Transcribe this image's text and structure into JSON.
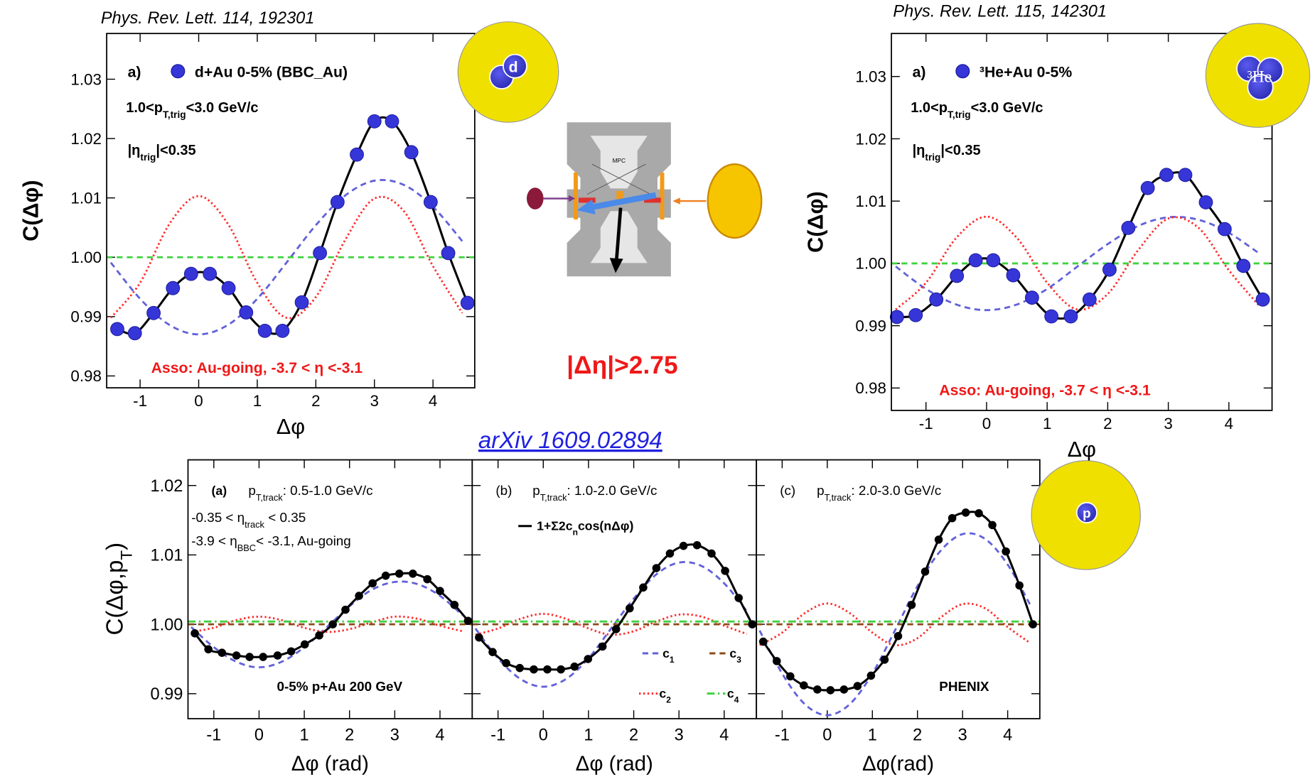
{
  "slide": {
    "delta_eta": "|Δη|>2.75",
    "reference": "arXiv 1609.02894",
    "detector_label": "MPC",
    "nuclei": [
      "d",
      "³He",
      "p"
    ]
  },
  "chart_data": [
    {
      "type": "line",
      "citation": "Phys. Rev. Lett. 114, 192301",
      "xlabel": "Δφ",
      "ylabel": "C(Δφ)",
      "xlim": [
        -1.5708,
        4.7124
      ],
      "ylim": [
        0.978,
        1.0377
      ],
      "xticks": [
        -1,
        0,
        1,
        2,
        3,
        4
      ],
      "yticks": [
        0.98,
        0.99,
        {
          "value": 1,
          "label": "1.00"
        },
        1.01,
        1.02,
        1.03
      ],
      "legend": "upper left",
      "annotations": [
        "a)",
        [
          "1.0<p",
          "T,trig",
          "<3.0 GeV/c"
        ],
        [
          "|η",
          "trig",
          "|<0.35"
        ],
        "Asso: Au-going, -3.7 < η <-3.1"
      ],
      "series": [
        {
          "name": "d+Au 0-5% (BBC_Au)",
          "color": "#3535d8",
          "marker": "circle",
          "line_color": "#000000",
          "line_style": "solid",
          "x": [
            -1.39,
            -1.09,
            -0.77,
            -0.44,
            -0.13,
            0.19,
            0.51,
            0.81,
            1.13,
            1.43,
            1.76,
            2.07,
            2.37,
            2.7,
            3.0,
            3.3,
            3.63,
            3.96,
            4.26,
            4.59
          ],
          "values": [
            0.9879,
            0.9872,
            0.9906,
            0.9948,
            0.9972,
            0.9972,
            0.9948,
            0.9907,
            0.9876,
            0.9876,
            0.9924,
            1.0007,
            1.0093,
            1.0173,
            1.0229,
            1.0229,
            1.0177,
            1.0093,
            1.0007,
            0.9923
          ]
        },
        {
          "color": "#6262da",
          "line_style": "dashed",
          "x": [
            -1.5,
            -1,
            -0.5,
            0,
            0.5,
            1,
            1.5,
            2,
            2.5,
            3,
            3.5,
            4,
            4.5
          ],
          "values": [
            0.9991,
            0.993,
            0.9886,
            0.987,
            0.9886,
            0.993,
            0.9991,
            1.0054,
            1.0104,
            1.0129,
            1.0122,
            1.0085,
            1.0027
          ]
        },
        {
          "color": "#ff2a2a",
          "line_style": "dotted",
          "x": [
            -1.5,
            -1,
            -0.5,
            0,
            0.5,
            1,
            1.5,
            2,
            2.5,
            3,
            3.5,
            4,
            4.5
          ],
          "values": [
            0.9898,
            0.9957,
            1.0056,
            1.0103,
            1.0056,
            0.9957,
            0.9898,
            0.9933,
            1.0029,
            1.0099,
            1.0078,
            0.9985,
            0.9906
          ]
        },
        {
          "color": "#3fd23f",
          "line_style": "dashed",
          "x": [
            -1.5708,
            4.7124
          ],
          "values": [
            1.0,
            1.0
          ]
        }
      ]
    },
    {
      "type": "line",
      "citation": "Phys. Rev. Lett. 115, 142301",
      "xlabel": "Δφ",
      "ylabel": "C(Δφ)",
      "xlim": [
        -1.5708,
        4.7124
      ],
      "ylim": [
        0.9764,
        1.0369
      ],
      "xticks": [
        -1,
        0,
        1,
        2,
        3,
        4
      ],
      "yticks": [
        0.98,
        0.99,
        {
          "value": 1,
          "label": "1.00"
        },
        1.01,
        1.02,
        1.03
      ],
      "legend": "upper left",
      "annotations": [
        "a)",
        [
          "1.0<p",
          "T,trig",
          "<3.0 GeV/c"
        ],
        [
          "|η",
          "trig",
          "|<0.35"
        ],
        "Asso: Au-going, -3.7 < η <-3.1"
      ],
      "series": [
        {
          "name": "³He+Au 0-5%",
          "color": "#3535d8",
          "marker": "circle",
          "line_color": "#000000",
          "line_style": "solid",
          "x": [
            -1.48,
            -1.17,
            -0.83,
            -0.49,
            -0.18,
            0.11,
            0.44,
            0.75,
            1.07,
            1.39,
            1.7,
            2.03,
            2.34,
            2.66,
            2.97,
            3.28,
            3.62,
            3.93,
            4.24,
            4.56
          ],
          "values": [
            0.9914,
            0.9917,
            0.9942,
            0.998,
            1.0005,
            1.0005,
            0.9981,
            0.9945,
            0.9915,
            0.9915,
            0.9942,
            0.999,
            1.0057,
            1.0121,
            1.0142,
            1.0142,
            1.0098,
            1.0055,
            0.9996,
            0.9942
          ]
        },
        {
          "color": "#6262da",
          "line_style": "dashed",
          "x": [
            -1.5,
            -1,
            -0.5,
            0,
            0.5,
            1,
            1.5,
            2,
            2.5,
            3,
            3.5,
            4,
            4.5
          ],
          "values": [
            0.9995,
            0.9959,
            0.9934,
            0.9925,
            0.9934,
            0.9959,
            0.9995,
            1.0031,
            1.006,
            1.0074,
            1.007,
            1.0049,
            1.0016
          ]
        },
        {
          "color": "#ff2a2a",
          "line_style": "dotted",
          "x": [
            -1.5,
            -1,
            -0.5,
            0,
            0.5,
            1,
            1.5,
            2,
            2.5,
            3,
            3.5,
            4,
            4.5
          ],
          "values": [
            0.9926,
            0.9969,
            1.0041,
            1.0075,
            1.0041,
            0.9969,
            0.9926,
            0.9951,
            1.0021,
            1.0072,
            1.0057,
            0.9989,
            0.9932
          ]
        },
        {
          "color": "#3fd23f",
          "line_style": "dashed",
          "x": [
            -1.5708,
            4.7124
          ],
          "values": [
            1.0,
            1.0
          ]
        }
      ]
    },
    {
      "type": "line",
      "ylabel": [
        "C(Δφ,p",
        "T",
        ")"
      ],
      "ylim": [
        0.9864,
        1.0237
      ],
      "yticks": [
        0.99,
        {
          "value": 1,
          "label": "1.00"
        },
        1.01,
        1.02
      ],
      "panels": [
        {
          "xlabel": "Δφ (rad)",
          "xlim": [
            -1.5708,
            4.7124
          ],
          "xticks": [
            -1,
            0,
            1,
            2,
            3,
            4
          ],
          "annotations": [
            "(a)",
            [
              "p",
              "T,track",
              ": 0.5-1.0 GeV/c"
            ],
            [
              "-0.35 < η",
              "track",
              " < 0.35"
            ],
            [
              "-3.9 < η",
              "BBC",
              "< -3.1, Au-going"
            ],
            "0-5% p+Au 200 GeV"
          ],
          "series": [
            {
              "color": "#000000",
              "marker": "circle",
              "line_color": "#000000",
              "line_style": "solid",
              "x": [
                -1.42,
                -1.12,
                -0.82,
                -0.5,
                -0.21,
                0.09,
                0.41,
                0.71,
                1.01,
                1.33,
                1.63,
                1.91,
                2.21,
                2.51,
                2.8,
                3.1,
                3.4,
                3.72,
                4.0,
                4.32,
                4.62
              ],
              "values": [
                0.9987,
                0.9964,
                0.9959,
                0.9955,
                0.9953,
                0.9953,
                0.9955,
                0.9961,
                0.9971,
                0.9984,
                1.0,
                1.0021,
                1.0041,
                1.0059,
                1.007,
                1.0073,
                1.0073,
                1.0065,
                1.0048,
                1.0028,
                1.0005
              ]
            },
            {
              "color": "#6262da",
              "line_style": "dashed",
              "x": [
                -1.5,
                -1,
                -0.5,
                0,
                0.5,
                1,
                1.5,
                2,
                2.5,
                3,
                3.5,
                4,
                4.5
              ],
              "values": [
                0.9996,
                0.9967,
                0.9946,
                0.9938,
                0.9946,
                0.9967,
                0.9996,
                1.0026,
                1.005,
                1.0061,
                1.0058,
                1.0041,
                1.0013
              ]
            },
            {
              "color": "#ff2a2a",
              "line_style": "dotted",
              "x": [
                -1.5,
                -1,
                -0.5,
                0,
                0.5,
                1,
                1.5,
                2,
                2.5,
                3,
                3.5,
                4,
                4.5
              ],
              "values": [
                0.9989,
                0.9995,
                1.0006,
                1.0011,
                1.0006,
                0.9995,
                0.9989,
                0.9993,
                1.0003,
                1.0011,
                1.0008,
                0.9998,
                0.999
              ]
            },
            {
              "color": "#8b4a1a",
              "line_style": "dashed",
              "x": [
                -1.5708,
                4.7124
              ],
              "values": [
                1.0,
                1.0
              ]
            },
            {
              "color": "#3fd23f",
              "line_style": "dashdot",
              "x": [
                -1.5708,
                4.7124
              ],
              "values": [
                1.0004,
                1.0004
              ]
            }
          ]
        },
        {
          "xlabel": "Δφ (rad)",
          "xlim": [
            -1.5708,
            4.7124
          ],
          "xticks": [
            -1,
            0,
            1,
            2,
            3,
            4
          ],
          "annotations": [
            "(b)",
            [
              "p",
              "T,track",
              ": 1.0-2.0 GeV/c"
            ]
          ],
          "series": [
            {
              "name": [
                "1+Σ2c",
                "n",
                "cos(nΔφ)"
              ],
              "color": "#000000",
              "marker": "circle",
              "line_color": "#000000",
              "line_style": "solid",
              "x": [
                -1.42,
                -1.12,
                -0.82,
                -0.52,
                -0.21,
                0.09,
                0.39,
                0.69,
                0.99,
                1.31,
                1.61,
                1.91,
                2.21,
                2.5,
                2.8,
                3.1,
                3.4,
                3.72,
                4.02,
                4.32,
                4.62
              ],
              "values": [
                0.9981,
                0.996,
                0.9944,
                0.9937,
                0.9935,
                0.9935,
                0.9935,
                0.9939,
                0.995,
                0.9968,
                0.9993,
                1.0023,
                1.0053,
                1.0081,
                1.0102,
                1.0113,
                1.0114,
                1.0102,
                1.0077,
                1.0038,
                1.0
              ]
            },
            {
              "name": [
                "c",
                "1"
              ],
              "color": "#6262da",
              "line_style": "dashed",
              "x": [
                -1.5,
                -1,
                -0.5,
                0,
                0.5,
                1,
                1.5,
                2,
                2.5,
                3,
                3.5,
                4,
                4.5
              ],
              "values": [
                0.9994,
                0.9951,
                0.9921,
                0.991,
                0.9921,
                0.9951,
                0.9994,
                1.0037,
                1.0072,
                1.0089,
                1.0084,
                1.0059,
                1.0019
              ]
            },
            {
              "name": [
                "c",
                "2"
              ],
              "color": "#ff2a2a",
              "line_style": "dotted",
              "x": [
                -1.5,
                -1,
                -0.5,
                0,
                0.5,
                1,
                1.5,
                2,
                2.5,
                3,
                3.5,
                4,
                4.5
              ],
              "values": [
                0.9985,
                0.9994,
                1.0008,
                1.0015,
                1.0008,
                0.9994,
                0.9985,
                0.999,
                1.0004,
                1.0014,
                1.0011,
                0.9998,
                0.9986
              ]
            },
            {
              "name": [
                "c",
                "3"
              ],
              "color": "#8b4a1a",
              "line_style": "dashed",
              "x": [
                -1.5708,
                4.7124
              ],
              "values": [
                1.0,
                1.0
              ]
            },
            {
              "name": [
                "c",
                "4"
              ],
              "color": "#3fd23f",
              "line_style": "dashdot",
              "x": [
                -1.5708,
                4.7124
              ],
              "values": [
                1.0004,
                1.0004
              ]
            }
          ]
        },
        {
          "xlabel": "Δφ(rad)",
          "xlim": [
            -1.5708,
            4.7124
          ],
          "xticks": [
            -1,
            0,
            1,
            2,
            3,
            4
          ],
          "annotations": [
            "(c)",
            [
              "p",
              "T,track",
              ": 2.0-3.0 GeV/c"
            ],
            "PHENIX"
          ],
          "series": [
            {
              "color": "#000000",
              "marker": "circle",
              "line_color": "#000000",
              "line_style": "solid",
              "x": [
                -1.42,
                -1.12,
                -0.82,
                -0.52,
                -0.22,
                0.07,
                0.37,
                0.67,
                0.97,
                1.27,
                1.57,
                1.87,
                2.17,
                2.47,
                2.77,
                3.07,
                3.36,
                3.66,
                3.96,
                4.26,
                4.56
              ],
              "values": [
                0.9975,
                0.9947,
                0.9925,
                0.9912,
                0.9906,
                0.9905,
                0.9906,
                0.9911,
                0.9926,
                0.9949,
                0.9983,
                1.0028,
                1.0076,
                1.0122,
                1.0153,
                1.0161,
                1.016,
                1.0143,
                1.0105,
                1.0056,
                1.0
              ]
            },
            {
              "color": "#6262da",
              "line_style": "dashed",
              "x": [
                -1.5,
                -1,
                -0.5,
                0,
                0.5,
                1,
                1.5,
                2,
                2.5,
                3,
                3.5,
                4,
                4.5
              ],
              "values": [
                0.9991,
                0.9929,
                0.9885,
                0.9869,
                0.9885,
                0.9929,
                0.9991,
                1.0055,
                1.0105,
                1.013,
                1.0123,
                1.0086,
                1.0028
              ]
            },
            {
              "color": "#ff2a2a",
              "line_style": "dotted",
              "x": [
                -1.5,
                -1,
                -0.5,
                0,
                0.5,
                1,
                1.5,
                2,
                2.5,
                3,
                3.5,
                4,
                4.5
              ],
              "values": [
                0.997,
                0.9988,
                1.0016,
                1.003,
                1.0016,
                0.9988,
                0.997,
                0.998,
                1.0009,
                1.0029,
                1.0023,
                0.9996,
                0.9973
              ]
            },
            {
              "color": "#8b4a1a",
              "line_style": "dashed",
              "x": [
                -1.5708,
                4.7124
              ],
              "values": [
                1.0,
                1.0
              ]
            },
            {
              "color": "#3fd23f",
              "line_style": "dashdot",
              "x": [
                -1.5708,
                4.7124
              ],
              "values": [
                1.0004,
                1.0004
              ]
            }
          ]
        }
      ]
    }
  ]
}
